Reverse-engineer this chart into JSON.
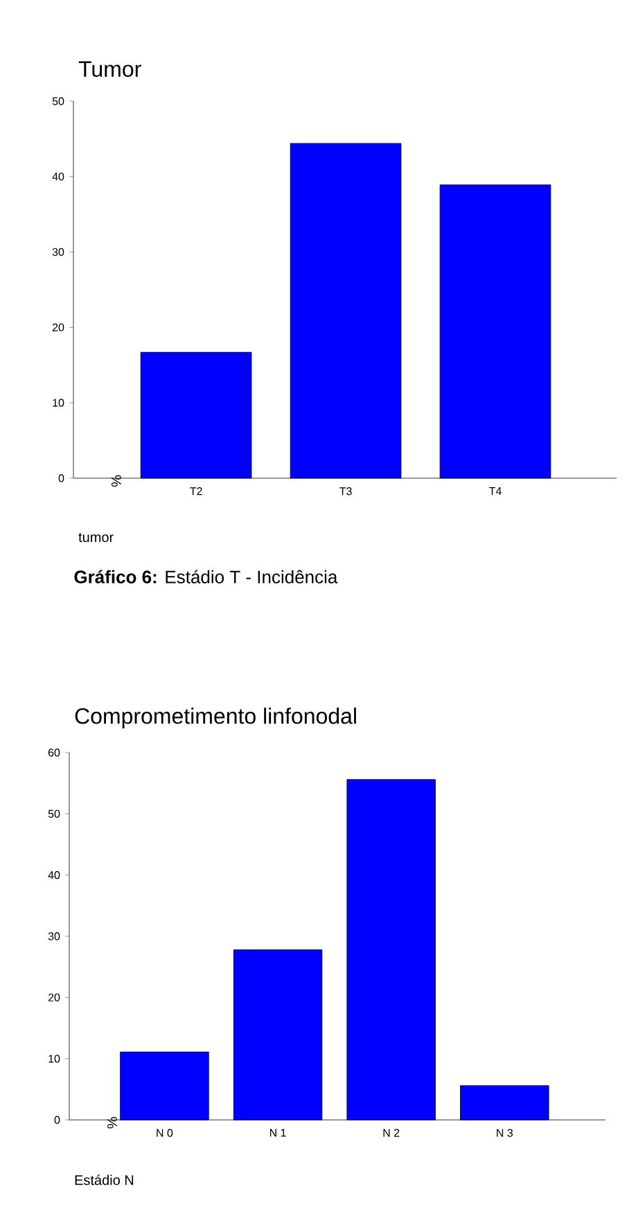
{
  "chart_data": [
    {
      "type": "bar",
      "title": "Tumor",
      "xlabel": "tumor",
      "ylabel": "%",
      "categories": [
        "T2",
        "T3",
        "T4"
      ],
      "values": [
        16.7,
        44.4,
        38.9
      ],
      "color": "#0000ff",
      "ylim": [
        0,
        50
      ],
      "yticks": [
        0,
        10,
        20,
        30,
        40,
        50
      ],
      "annotations": [
        "**Gráfico 6:** Estádio T - Incidência"
      ]
    },
    {
      "type": "bar",
      "title": "Comprometimento linfonodal",
      "xlabel": "Estádio N",
      "ylabel": "%",
      "categories": [
        "N 0",
        "N 1",
        "N 2",
        "N 3"
      ],
      "values": [
        11.1,
        27.8,
        55.6,
        5.6
      ],
      "color": "#0000ff",
      "ylim": [
        0,
        60
      ],
      "yticks": [
        0,
        10,
        20,
        30,
        40,
        50,
        60
      ]
    }
  ]
}
